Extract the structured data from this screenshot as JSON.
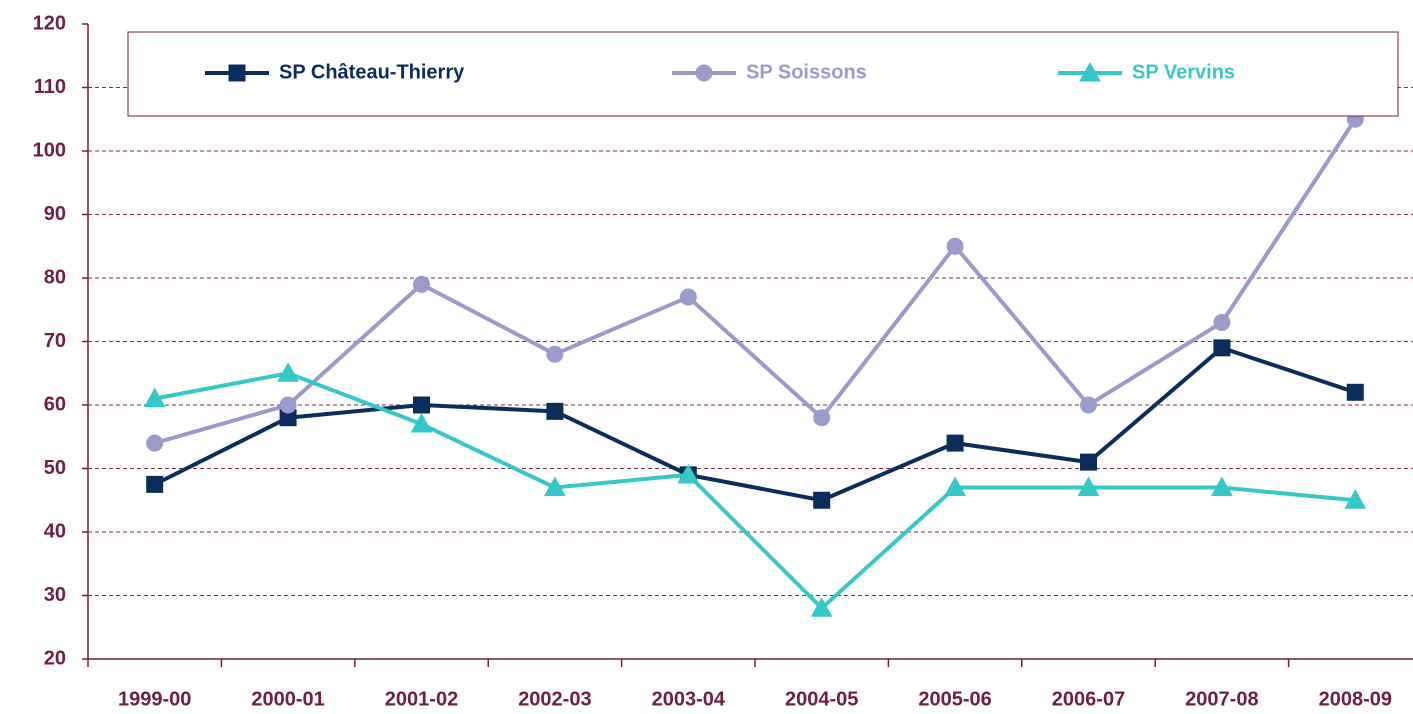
{
  "chart_data": {
    "type": "line",
    "categories": [
      "1999-00",
      "2000-01",
      "2001-02",
      "2002-03",
      "2003-04",
      "2004-05",
      "2005-06",
      "2006-07",
      "2007-08",
      "2008-09"
    ],
    "series": [
      {
        "name": "SP Château-Thierry",
        "color": "#0b2d5b",
        "marker": "square",
        "values": [
          47.5,
          58,
          60,
          59,
          49,
          45,
          54,
          51,
          69,
          62
        ]
      },
      {
        "name": "SP Soissons",
        "color": "#9a9acb",
        "marker": "circle",
        "values": [
          54,
          60,
          79,
          68,
          77,
          58,
          85,
          60,
          73,
          105
        ]
      },
      {
        "name": "SP Vervins",
        "color": "#36c8c8",
        "marker": "triangle",
        "values": [
          61,
          65,
          57,
          47,
          49,
          28,
          47,
          47,
          47,
          45
        ]
      }
    ],
    "ylim": [
      20,
      120
    ],
    "yticks": [
      20,
      30,
      40,
      50,
      60,
      70,
      80,
      90,
      100,
      110,
      120
    ],
    "grid": true,
    "legend": "top"
  }
}
